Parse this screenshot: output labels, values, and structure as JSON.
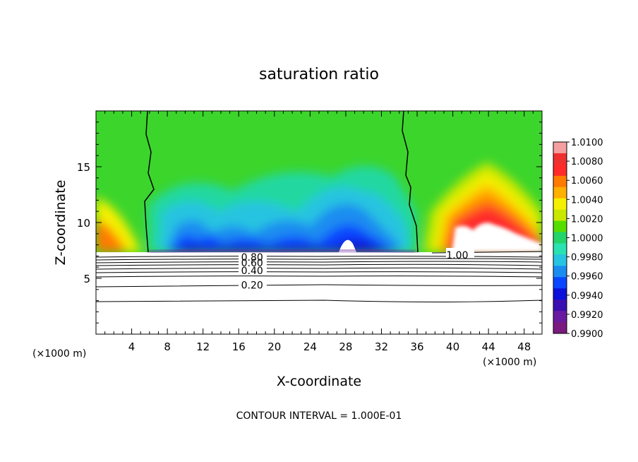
{
  "chart_data": {
    "type": "heatmap",
    "title": "saturation ratio",
    "xlabel": "X-coordinate",
    "ylabel": "Z-coordinate",
    "x_unit": "(×1000 m)",
    "x_ticks": [
      4,
      8,
      12,
      16,
      20,
      24,
      28,
      32,
      36,
      40,
      44,
      48
    ],
    "x_tick_labels": [
      "4",
      "8",
      "12",
      "16",
      "20",
      "24",
      "28",
      "32",
      "36",
      "40",
      "44",
      "48"
    ],
    "y_ticks": [
      5,
      10,
      15
    ],
    "y_tick_labels": [
      "5",
      "10",
      "15"
    ],
    "xlim": [
      0,
      50
    ],
    "ylim": [
      0,
      20
    ],
    "footnote": "CONTOUR INTERVAL = 1.000E-01",
    "colorbar": {
      "labels": [
        "1.0100",
        "1.0080",
        "1.0060",
        "1.0040",
        "1.0020",
        "1.0000",
        "0.9980",
        "0.9960",
        "0.9940",
        "0.9920",
        "0.9900"
      ],
      "colors": [
        "#f4a0a0",
        "#ee3030",
        "#ff2a2a",
        "#ff7a00",
        "#ffb000",
        "#f5f000",
        "#c8e800",
        "#55dd00",
        "#22d46a",
        "#2ae2b0",
        "#26c4e0",
        "#1a8cf0",
        "#0a46ff",
        "#0c10d8",
        "#3a10b0",
        "#6a1aa0",
        "#7a1a80"
      ]
    },
    "contour_labels": [
      {
        "text": "0.80",
        "x": 17.5,
        "y": 6.9
      },
      {
        "text": "0.60",
        "x": 17.5,
        "y": 6.4
      },
      {
        "text": "0.40",
        "x": 17.5,
        "y": 5.7
      },
      {
        "text": "0.20",
        "x": 17.5,
        "y": 4.4
      },
      {
        "text": "1.00",
        "x": 40.5,
        "y": 7.1
      }
    ]
  }
}
